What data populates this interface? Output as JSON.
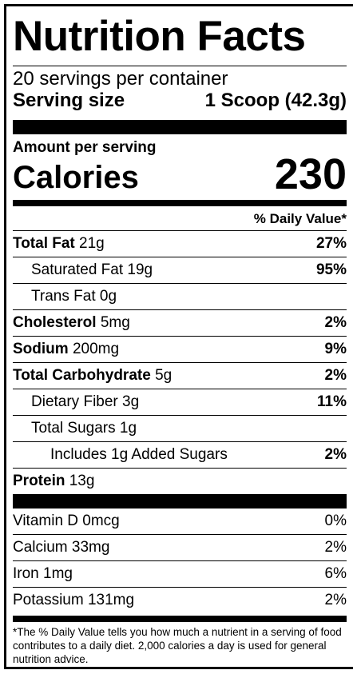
{
  "title": "Nutrition Facts",
  "servings_per_container": "20 servings per container",
  "serving_size": {
    "label": "Serving size",
    "value": "1 Scoop (42.3g)"
  },
  "amount_per_serving": "Amount per serving",
  "calories": {
    "label": "Calories",
    "value": "230"
  },
  "daily_value_header": "% Daily Value*",
  "nutrients": [
    {
      "name": "Total Fat",
      "amount": "21g",
      "pct": "27%"
    },
    {
      "name": "Saturated Fat",
      "amount": "19g",
      "pct": "95%"
    },
    {
      "name": "Trans Fat",
      "amount": "0g",
      "pct": ""
    },
    {
      "name": "Cholesterol",
      "amount": "5mg",
      "pct": "2%"
    },
    {
      "name": "Sodium",
      "amount": "200mg",
      "pct": "9%"
    },
    {
      "name": "Total Carbohydrate",
      "amount": "5g",
      "pct": "2%"
    },
    {
      "name": "Dietary Fiber",
      "amount": "3g",
      "pct": "11%"
    },
    {
      "name": "Total Sugars",
      "amount": "1g",
      "pct": ""
    },
    {
      "name": "Includes 1g Added Sugars",
      "amount": "",
      "pct": "2%"
    },
    {
      "name": "Protein",
      "amount": "13g",
      "pct": ""
    }
  ],
  "vitamins": [
    {
      "name": "Vitamin D 0mcg",
      "pct": "0%"
    },
    {
      "name": "Calcium 33mg",
      "pct": "2%"
    },
    {
      "name": "Iron 1mg",
      "pct": "6%"
    },
    {
      "name": "Potassium 131mg",
      "pct": "2%"
    }
  ],
  "footnote": "*The % Daily Value tells you how much a nutrient in a serving of food contributes to a daily diet. 2,000 calories a day is used for general nutrition advice."
}
